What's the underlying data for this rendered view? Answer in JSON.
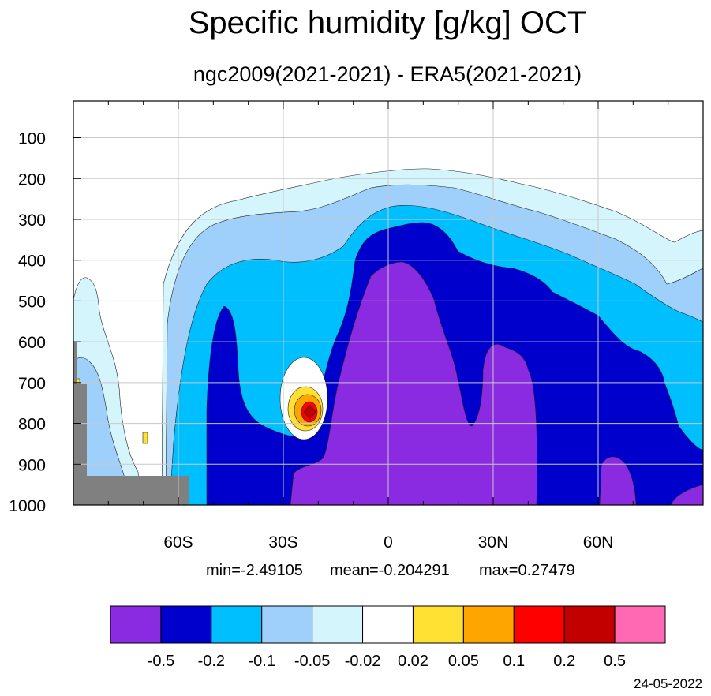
{
  "chart_data": {
    "type": "heatmap",
    "title": "Specific humidity [g/kg] OCT",
    "subtitle": "ngc2009(2021-2021) - ERA5(2021-2021)",
    "xlabel": "",
    "ylabel": "",
    "x_ticks": [
      {
        "value": -60,
        "label": "60S"
      },
      {
        "value": -30,
        "label": "30S"
      },
      {
        "value": 0,
        "label": "0"
      },
      {
        "value": 30,
        "label": "30N"
      },
      {
        "value": 60,
        "label": "60N"
      }
    ],
    "y_ticks": [
      100,
      200,
      300,
      400,
      500,
      600,
      700,
      800,
      900,
      1000
    ],
    "xlim": [
      -90,
      90
    ],
    "ylim": [
      1000,
      10
    ],
    "grid": true,
    "stats": {
      "min": "min=-2.49105",
      "mean": "mean=-0.204291",
      "max": "max=0.27479"
    },
    "colorbar": {
      "colors": [
        "#8a2be2",
        "#0000cd",
        "#00bfff",
        "#9fd0fb",
        "#d4f5fc",
        "#ffffff",
        "#fee133",
        "#ffa500",
        "#ff0000",
        "#c20000",
        "#ff69b4"
      ],
      "levels": [
        "-0.5",
        "-0.2",
        "-0.1",
        "-0.05",
        "-0.02",
        "0.02",
        "0.05",
        "0.1",
        "0.2",
        "0.5"
      ]
    },
    "missing_color": "#808080",
    "date": "24-05-2022"
  }
}
